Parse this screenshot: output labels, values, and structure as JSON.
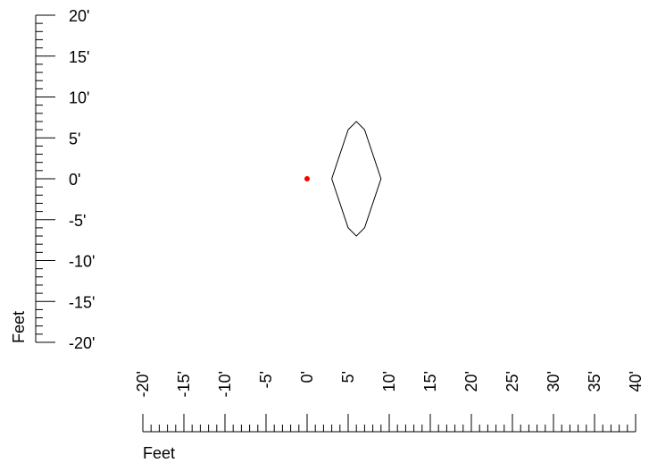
{
  "chart_data": {
    "type": "diagram",
    "y_axis": {
      "label": "Feet",
      "range": [
        -20,
        20
      ],
      "major_step": 5,
      "minor_step": 1,
      "tick_labels": [
        "20'",
        "15'",
        "10'",
        "5'",
        "0'",
        "-5'",
        "-10'",
        "-15'",
        "-20'"
      ]
    },
    "x_axis": {
      "label": "Feet",
      "range": [
        -20,
        40
      ],
      "major_step": 5,
      "minor_step": 1,
      "tick_labels": [
        "-20'",
        "-15'",
        "-10'",
        "-5'",
        "0'",
        "5'",
        "10'",
        "15'",
        "20'",
        "25'",
        "30'",
        "35'",
        "40'"
      ]
    },
    "source_point": {
      "x": 0,
      "y": 0,
      "color": "#ff0000"
    },
    "contour": {
      "color": "#000000",
      "points": [
        [
          3,
          0
        ],
        [
          5,
          6
        ],
        [
          6,
          7
        ],
        [
          7,
          6
        ],
        [
          9,
          0
        ],
        [
          7,
          -6
        ],
        [
          6,
          -7
        ],
        [
          5,
          -6
        ],
        [
          3,
          0
        ]
      ]
    }
  }
}
